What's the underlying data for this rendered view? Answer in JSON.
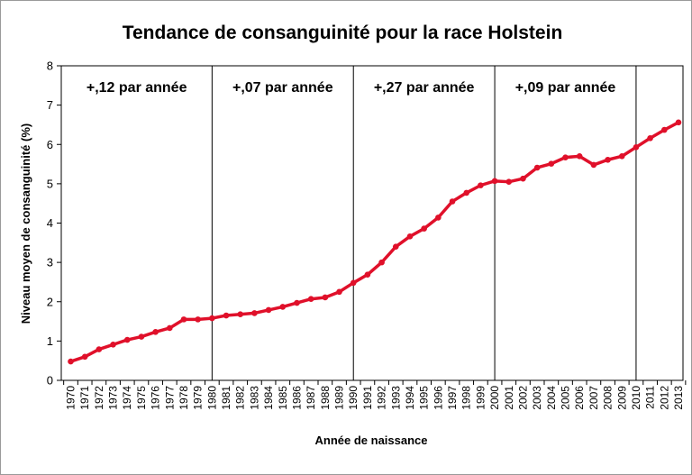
{
  "chart_data": {
    "type": "line",
    "title": "Tendance de consanguinité pour la race Holstein",
    "xlabel": "Année de naissance",
    "ylabel": "Niveau moyen de consanguinité (%)",
    "ylim": [
      0,
      8
    ],
    "yticks": [
      0,
      1,
      2,
      3,
      4,
      5,
      6,
      7,
      8
    ],
    "grid": "vertical lines at period boundaries",
    "legend": "none",
    "series_color": "#e0102a",
    "x": [
      "1970",
      "1971",
      "1972",
      "1973",
      "1974",
      "1975",
      "1976",
      "1977",
      "1978",
      "1979",
      "1980",
      "1981",
      "1982",
      "1983",
      "1984",
      "1985",
      "1986",
      "1987",
      "1988",
      "1989",
      "1990",
      "1991",
      "1992",
      "1993",
      "1994",
      "1995",
      "1996",
      "1997",
      "1998",
      "1999",
      "2000",
      "2001",
      "2002",
      "2003",
      "2004",
      "2005",
      "2006",
      "2007",
      "2008",
      "2009",
      "2010",
      "2011",
      "2012",
      "2013"
    ],
    "series": [
      {
        "values": [
          0.48,
          0.6,
          0.79,
          0.91,
          1.03,
          1.11,
          1.23,
          1.33,
          1.55,
          1.55,
          1.58,
          1.65,
          1.68,
          1.71,
          1.79,
          1.87,
          1.97,
          2.07,
          2.11,
          2.25,
          2.48,
          2.69,
          3.0,
          3.4,
          3.66,
          3.86,
          4.14,
          4.55,
          4.77,
          4.96,
          5.07,
          5.05,
          5.13,
          5.41,
          5.51,
          5.67,
          5.7,
          5.48,
          5.61,
          5.7,
          5.93,
          6.16,
          6.37,
          6.56
        ]
      }
    ],
    "period_boundaries": [
      "1980",
      "1990",
      "2000",
      "2010"
    ],
    "annotations": [
      {
        "text": "+,12 par année",
        "period": "1970-1980"
      },
      {
        "text": "+,07 par année",
        "period": "1980-1990"
      },
      {
        "text": "+,27 par année",
        "period": "1990-2000"
      },
      {
        "text": "+,09 par année",
        "period": "2000-2010"
      }
    ]
  }
}
